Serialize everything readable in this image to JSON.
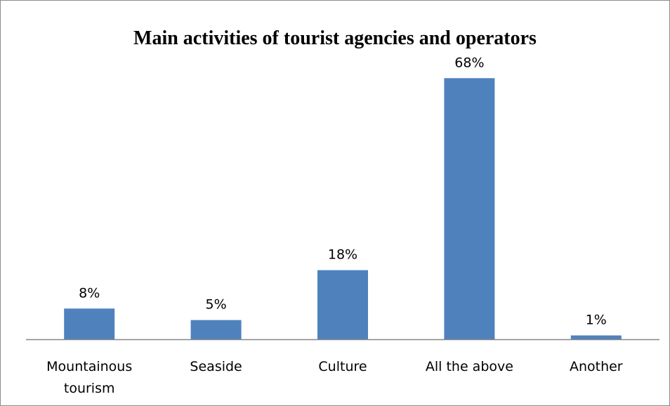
{
  "chart_data": {
    "type": "bar",
    "title": "Main activities of tourist agencies and operators",
    "categories": [
      [
        "Mountainous",
        "tourism"
      ],
      [
        "Seaside"
      ],
      [
        "Culture"
      ],
      [
        "All the above"
      ],
      [
        "Another"
      ]
    ],
    "values": [
      8,
      5,
      18,
      68,
      1
    ],
    "data_labels": [
      "8%",
      "5%",
      "18%",
      "68%",
      "1%"
    ],
    "xlabel": "",
    "ylabel": "",
    "ylim": [
      0,
      75
    ],
    "grid": false,
    "legend": "none",
    "colors": {
      "bar": "#4f81bd",
      "axis": "#868686"
    }
  }
}
